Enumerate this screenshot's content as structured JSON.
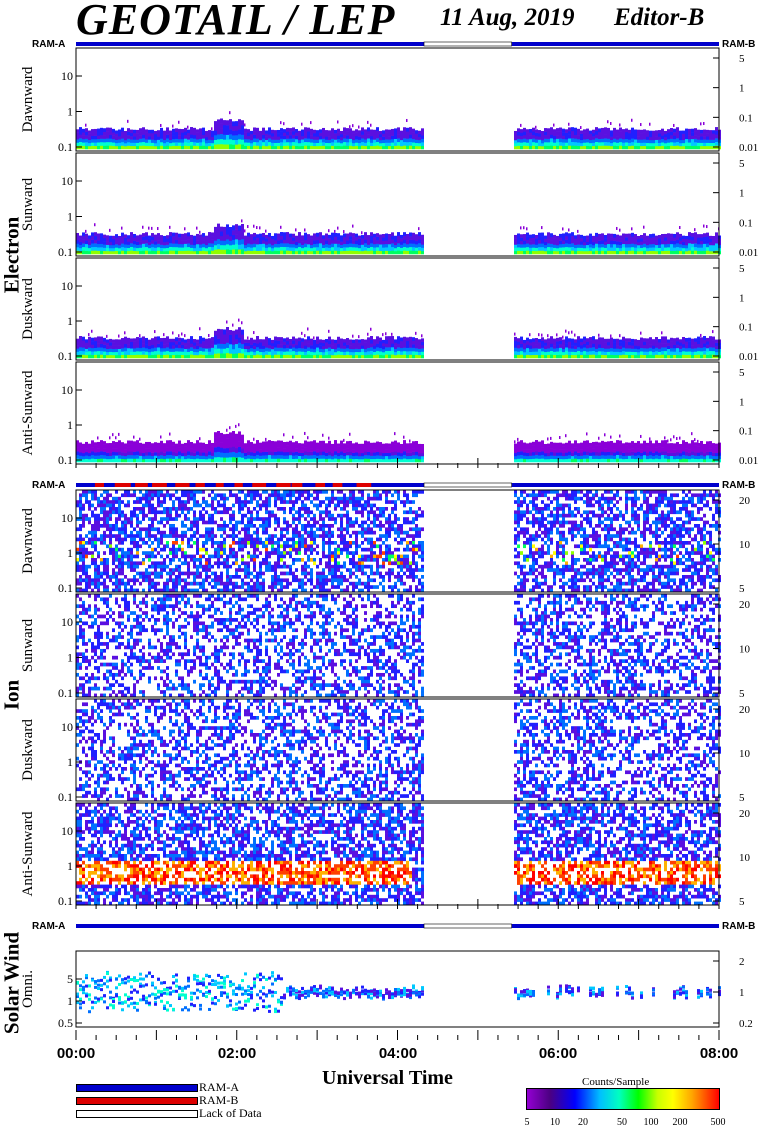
{
  "header": {
    "title": "GEOTAIL / LEP",
    "date": "11 Aug, 2019",
    "editor": "Editor-B"
  },
  "ram_labels": {
    "left": "RAM-A",
    "right": "RAM-B"
  },
  "groups": {
    "electron": "Electron",
    "ion": "Ion",
    "solar_wind": "Solar Wind"
  },
  "x_axis": {
    "label": "Universal Time",
    "ticks": [
      "00:00",
      "02:00",
      "04:00",
      "06:00",
      "08:00"
    ]
  },
  "legend": {
    "items": [
      {
        "label": "RAM-A",
        "color": "#0000cc"
      },
      {
        "label": "RAM-B",
        "color": "#dd0000"
      },
      {
        "label": "Lack of Data",
        "color": "#ffffff"
      }
    ]
  },
  "colorbar": {
    "title": "Counts/Sample",
    "ticks": [
      "5",
      "10",
      "20",
      "50",
      "100",
      "200",
      "500"
    ],
    "colors": [
      "#9400d3",
      "#0000ff",
      "#00bfff",
      "#00ff80",
      "#c8ff00",
      "#ffa500",
      "#ff0000"
    ]
  },
  "chart_data": {
    "type": "heatmap",
    "x_range_hours": [
      0,
      8
    ],
    "data_gap_hours": [
      4.33,
      5.42
    ],
    "panels": [
      {
        "group": "Electron",
        "label": "Dawnward",
        "yticks_left": [
          "10",
          "1",
          "0.1"
        ],
        "yticks_right": [
          "5",
          "1",
          "0.1",
          "0.01"
        ],
        "species": "electron",
        "ram": "A"
      },
      {
        "group": "Electron",
        "label": "Sunward",
        "yticks_left": [
          "10",
          "1",
          "0.1"
        ],
        "yticks_right": [
          "5",
          "1",
          "0.1",
          "0.01"
        ],
        "species": "electron",
        "ram": "A"
      },
      {
        "group": "Electron",
        "label": "Duskward",
        "yticks_left": [
          "10",
          "1",
          "0.1"
        ],
        "yticks_right": [
          "5",
          "1",
          "0.1",
          "0.01"
        ],
        "species": "electron",
        "ram": "A"
      },
      {
        "group": "Electron",
        "label": "Anti-Sunward",
        "yticks_left": [
          "10",
          "1",
          "0.1"
        ],
        "yticks_right": [
          "5",
          "1",
          "0.1",
          "0.01"
        ],
        "species": "electron",
        "ram": "A"
      },
      {
        "group": "Ion",
        "label": "Dawnward",
        "yticks_left": [
          "10",
          "1",
          "0.1"
        ],
        "yticks_right": [
          "20",
          "10",
          "5"
        ],
        "species": "ion",
        "ram": "mixed"
      },
      {
        "group": "Ion",
        "label": "Sunward",
        "yticks_left": [
          "10",
          "1",
          "0.1"
        ],
        "yticks_right": [
          "20",
          "10",
          "5"
        ],
        "species": "ion_sparse",
        "ram": "mixed"
      },
      {
        "group": "Ion",
        "label": "Duskward",
        "yticks_left": [
          "10",
          "1",
          "0.1"
        ],
        "yticks_right": [
          "20",
          "10",
          "5"
        ],
        "species": "ion_sparse",
        "ram": "mixed"
      },
      {
        "group": "Ion",
        "label": "Anti-Sunward",
        "yticks_left": [
          "10",
          "1",
          "0.1"
        ],
        "yticks_right": [
          "20",
          "10",
          "5"
        ],
        "species": "ion_hot",
        "ram": "mixed"
      },
      {
        "group": "Solar Wind",
        "label": "Omni.",
        "yticks_left": [
          "5",
          "1",
          "0.5"
        ],
        "yticks_right": [
          "2",
          "1",
          "0.2"
        ],
        "species": "solarwind",
        "ram": "A"
      }
    ]
  }
}
